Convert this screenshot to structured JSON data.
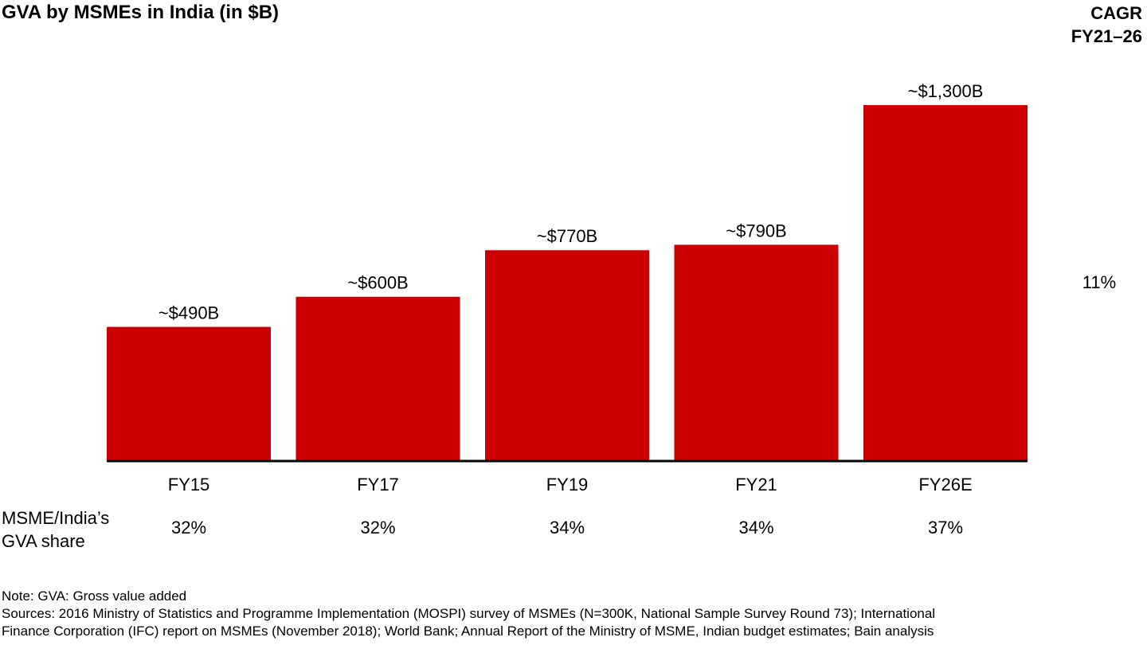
{
  "chart_data": {
    "type": "bar",
    "title": "GVA by MSMEs in India (in $B)",
    "categories": [
      "FY15",
      "FY17",
      "FY19",
      "FY21",
      "FY26E"
    ],
    "values": [
      490,
      600,
      770,
      790,
      1300
    ],
    "data_labels": [
      "~$490B",
      "~$600B",
      "~$770B",
      "~$790B",
      "~$1,300B"
    ],
    "ylim": [
      0,
      1300
    ],
    "grid": false,
    "bar_color": "#cc0000"
  },
  "cagr": {
    "header_line1": "CAGR",
    "header_line2": "FY21–26",
    "value": "11%"
  },
  "gva_share": {
    "label_line1": "MSME/India’s",
    "label_line2": "GVA share",
    "values": [
      "32%",
      "32%",
      "34%",
      "34%",
      "37%"
    ]
  },
  "footnotes": {
    "note": "Note: GVA: Gross value added",
    "sources_line1": "Sources: 2016 Ministry of Statistics and Programme Implementation (MOSPI) survey of MSMEs (N=300K, National Sample Survey Round 73); International",
    "sources_line2": "Finance Corporation (IFC) report on MSMEs (November 2018); World Bank; Annual Report of the Ministry of MSME, Indian budget estimates; Bain analysis"
  }
}
